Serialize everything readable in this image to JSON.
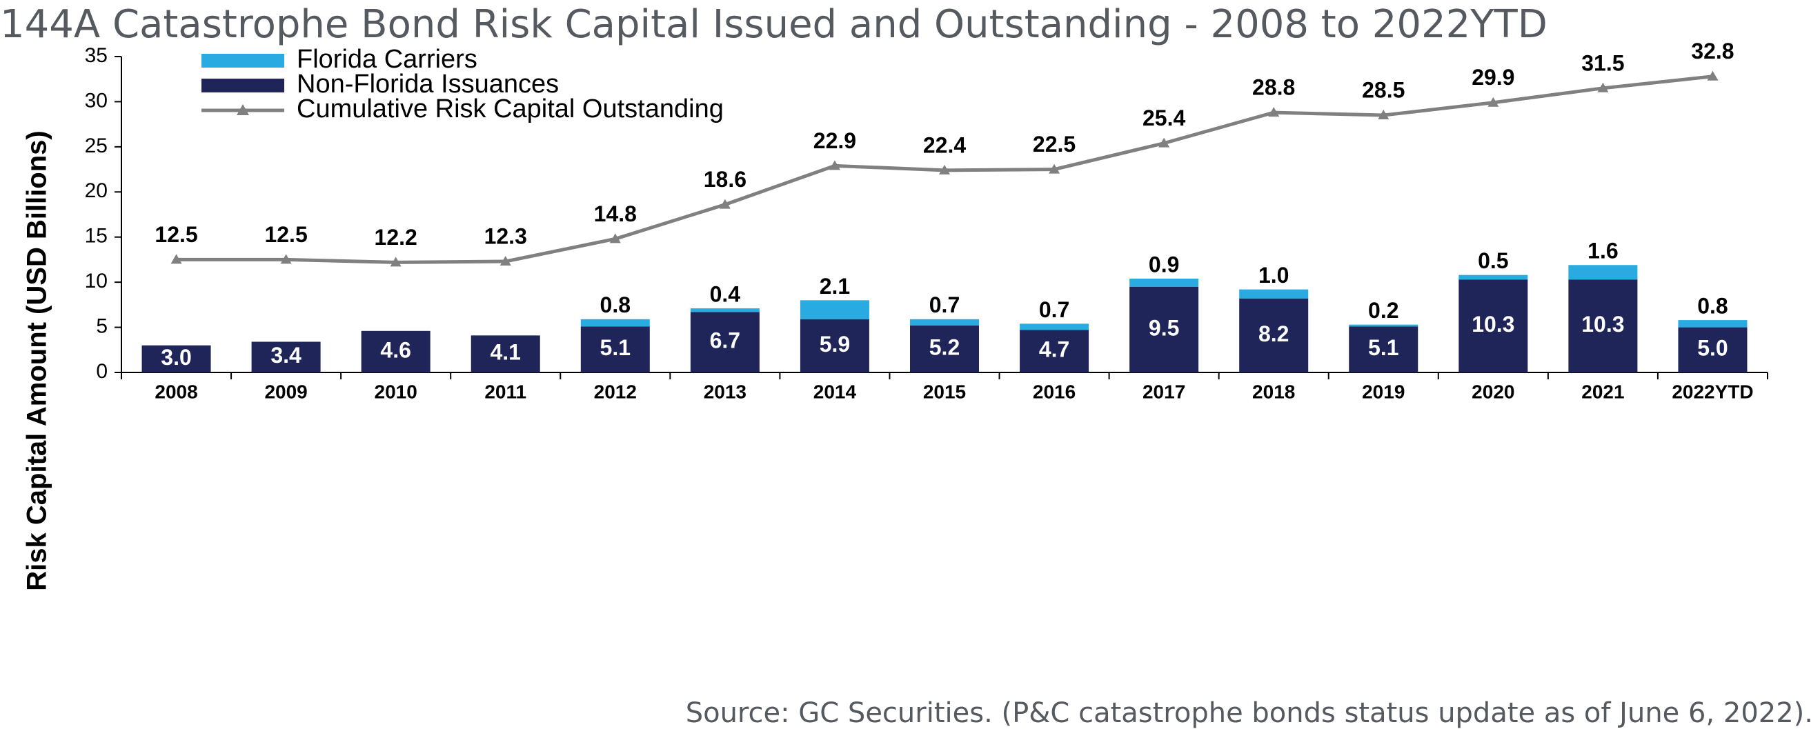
{
  "title": "144A Catastrophe Bond Risk Capital Issued and Outstanding - 2008 to 2022YTD",
  "source": "Source: GC Securities. (P&C catastrophe bonds status update as of June 6, 2022).",
  "colors": {
    "florida": "#29abe2",
    "non_florida": "#1f2459",
    "cumulative": "#808080"
  },
  "chart_data": {
    "type": "bar",
    "stacked": true,
    "title": "144A Catastrophe Bond Risk Capital Issued and Outstanding - 2008 to 2022YTD",
    "ylabel": "Risk Capital Amount (USD Billions)",
    "xlabel": "",
    "ylim": [
      0,
      35
    ],
    "yticks": [
      "0",
      "5",
      "10",
      "15",
      "20",
      "25",
      "30",
      "35"
    ],
    "grid": false,
    "legend_position": "top-left",
    "categories": [
      "2008",
      "2009",
      "2010",
      "2011",
      "2012",
      "2013",
      "2014",
      "2015",
      "2016",
      "2017",
      "2018",
      "2019",
      "2020",
      "2021",
      "2022YTD"
    ],
    "series": [
      {
        "name": "Florida Carriers",
        "type": "bar",
        "values": [
          0,
          0,
          0,
          0,
          0.8,
          0.4,
          2.1,
          0.7,
          0.7,
          0.9,
          1.0,
          0.2,
          0.5,
          1.6,
          0.8
        ],
        "labels": [
          "",
          "",
          "",
          "",
          "0.8",
          "0.4",
          "2.1",
          "0.7",
          "0.7",
          "0.9",
          "1.0",
          "0.2",
          "0.5",
          "1.6",
          "0.8"
        ]
      },
      {
        "name": "Non-Florida Issuances",
        "type": "bar",
        "values": [
          3.0,
          3.4,
          4.6,
          4.1,
          5.1,
          6.7,
          5.9,
          5.2,
          4.7,
          9.5,
          8.2,
          5.1,
          10.3,
          10.3,
          5.0
        ],
        "labels": [
          "3.0",
          "3.4",
          "4.6",
          "4.1",
          "5.1",
          "6.7",
          "5.9",
          "5.2",
          "4.7",
          "9.5",
          "8.2",
          "5.1",
          "10.3",
          "10.3",
          "5.0"
        ]
      },
      {
        "name": "Cumulative Risk Capital Outstanding",
        "type": "line",
        "values": [
          12.5,
          12.5,
          12.2,
          12.3,
          14.8,
          18.6,
          22.9,
          22.4,
          22.5,
          25.4,
          28.8,
          28.5,
          29.9,
          31.5,
          32.8
        ],
        "labels": [
          "12.5",
          "12.5",
          "12.2",
          "12.3",
          "14.8",
          "18.6",
          "22.9",
          "22.4",
          "22.5",
          "25.4",
          "28.8",
          "28.5",
          "29.9",
          "31.5",
          "32.8"
        ]
      }
    ]
  }
}
